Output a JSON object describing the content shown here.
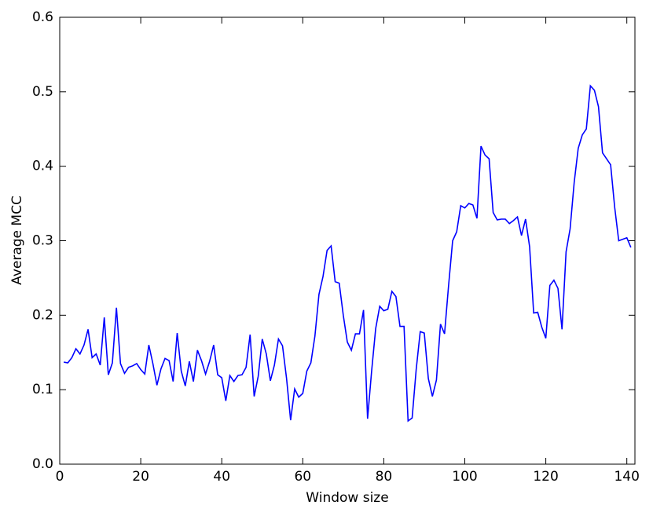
{
  "chart_data": {
    "type": "line",
    "xlabel": "Window size",
    "ylabel": "Average MCC",
    "xlim": [
      0,
      142
    ],
    "ylim": [
      0,
      0.6
    ],
    "xticks": [
      0,
      20,
      40,
      60,
      80,
      100,
      120,
      140
    ],
    "yticks": [
      {
        "value": 0,
        "label": "0.0"
      },
      0.1,
      0.2,
      0.3,
      0.4,
      0.5,
      0.6
    ],
    "series": [
      {
        "color": "#0000ff",
        "x": [
          1,
          2,
          3,
          4,
          5,
          6,
          7,
          8,
          9,
          10,
          11,
          12,
          13,
          14,
          15,
          16,
          17,
          18,
          19,
          20,
          21,
          22,
          23,
          24,
          25,
          26,
          27,
          28,
          29,
          30,
          31,
          32,
          33,
          34,
          35,
          36,
          37,
          38,
          39,
          40,
          41,
          42,
          43,
          44,
          45,
          46,
          47,
          48,
          49,
          50,
          51,
          52,
          53,
          54,
          55,
          56,
          57,
          58,
          59,
          60,
          61,
          62,
          63,
          64,
          65,
          66,
          67,
          68,
          69,
          70,
          71,
          72,
          73,
          74,
          75,
          76,
          77,
          78,
          79,
          80,
          81,
          82,
          83,
          84,
          85,
          86,
          87,
          88,
          89,
          90,
          91,
          92,
          93,
          94,
          95,
          96,
          97,
          98,
          99,
          100,
          101,
          102,
          103,
          104,
          105,
          106,
          107,
          108,
          109,
          110,
          111,
          112,
          113,
          114,
          115,
          116,
          117,
          118,
          119,
          120,
          121,
          122,
          123,
          124,
          125,
          126,
          127,
          128,
          129,
          130,
          131,
          132,
          133,
          134,
          135,
          136,
          137,
          138,
          139,
          140,
          141
        ],
        "values": [
          0.137,
          0.136,
          0.143,
          0.155,
          0.148,
          0.16,
          0.181,
          0.143,
          0.148,
          0.133,
          0.197,
          0.12,
          0.136,
          0.21,
          0.135,
          0.122,
          0.13,
          0.132,
          0.135,
          0.127,
          0.121,
          0.16,
          0.135,
          0.106,
          0.128,
          0.142,
          0.139,
          0.111,
          0.176,
          0.125,
          0.105,
          0.138,
          0.111,
          0.153,
          0.139,
          0.121,
          0.138,
          0.16,
          0.12,
          0.116,
          0.085,
          0.119,
          0.111,
          0.119,
          0.12,
          0.13,
          0.174,
          0.091,
          0.118,
          0.168,
          0.148,
          0.112,
          0.133,
          0.168,
          0.159,
          0.115,
          0.059,
          0.101,
          0.09,
          0.095,
          0.125,
          0.136,
          0.172,
          0.228,
          0.252,
          0.287,
          0.293,
          0.245,
          0.243,
          0.2,
          0.164,
          0.153,
          0.175,
          0.175,
          0.207,
          0.061,
          0.125,
          0.182,
          0.212,
          0.206,
          0.208,
          0.232,
          0.225,
          0.185,
          0.185,
          0.058,
          0.062,
          0.127,
          0.178,
          0.176,
          0.115,
          0.091,
          0.113,
          0.188,
          0.175,
          0.24,
          0.3,
          0.312,
          0.347,
          0.344,
          0.35,
          0.348,
          0.33,
          0.427,
          0.415,
          0.41,
          0.338,
          0.328,
          0.329,
          0.329,
          0.323,
          0.327,
          0.332,
          0.307,
          0.329,
          0.292,
          0.203,
          0.204,
          0.184,
          0.169,
          0.24,
          0.247,
          0.236,
          0.181,
          0.285,
          0.316,
          0.378,
          0.424,
          0.442,
          0.45,
          0.508,
          0.502,
          0.48,
          0.418,
          0.41,
          0.402,
          0.345,
          0.3,
          0.302,
          0.304,
          0.291
        ]
      }
    ]
  }
}
